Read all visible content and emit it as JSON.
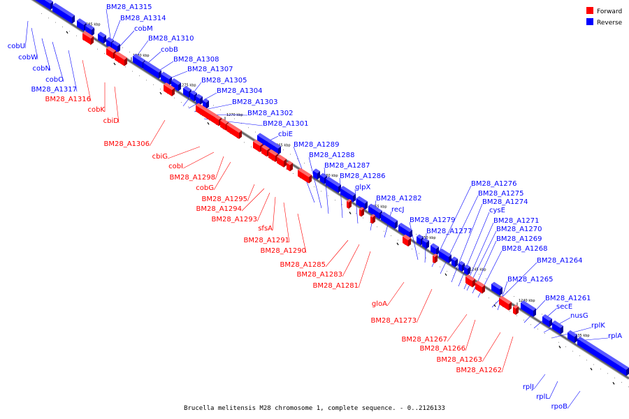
{
  "caption": "Brucella melitensis M28 chromosome 1, complete sequence. - 0..2126133",
  "legend": {
    "forward": {
      "label": "Forward",
      "color": "#ff0000"
    },
    "reverse": {
      "label": "Reverse",
      "color": "#0000ff"
    }
  },
  "ticks": [
    "1285 kbp",
    "1280 kbp",
    "1275 kbp",
    "1270 kbp",
    "1265 kbp",
    "1260 kbp",
    "1255 kbp",
    "1250 kbp",
    "1245 kbp",
    "1240 kbp",
    "1235 kbp"
  ],
  "reverse_genes": [
    "BM28_A1315",
    "BM28_A1314",
    "cobM",
    "BM28_A1310",
    "cobB",
    "BM28_A1308",
    "BM28_A1307",
    "BM28_A1305",
    "BM28_A1304",
    "BM28_A1303",
    "BM28_A1302",
    "BM28_A1301",
    "cbiE",
    "BM28_A1289",
    "BM28_A1288",
    "BM28_A1287",
    "BM28_A1286",
    "glpX",
    "BM28_A1282",
    "recJ",
    "BM28_A1279",
    "BM28_A1277",
    "BM28_A1276",
    "BM28_A1275",
    "BM28_A1274",
    "cysE",
    "BM28_A1271",
    "BM28_A1270",
    "BM28_A1269",
    "BM28_A1268",
    "BM28_A1264",
    "BM28_A1265",
    "BM28_A1261",
    "secE",
    "nusG",
    "rplK",
    "rplA"
  ],
  "reverse_left_genes": [
    "cobU",
    "cobW",
    "cobN",
    "cobO",
    "BM28_A1317",
    "rplJ",
    "rplL",
    "rpoB"
  ],
  "forward_genes": [
    "BM28_A1316",
    "cobK",
    "cbiD",
    "BM28_A1306",
    "cbiG",
    "cobI",
    "BM28_A1298",
    "cobG",
    "BM28_A1295",
    "BM28_A1294",
    "BM28_A1293",
    "sfsA",
    "BM28_A1291",
    "BM28_A1290",
    "BM28_A1285",
    "BM28_A1283",
    "BM28_A1281",
    "gloA",
    "BM28_A1273",
    "BM28_A1267",
    "BM28_A1266",
    "BM28_A1263",
    "BM28_A1262"
  ]
}
